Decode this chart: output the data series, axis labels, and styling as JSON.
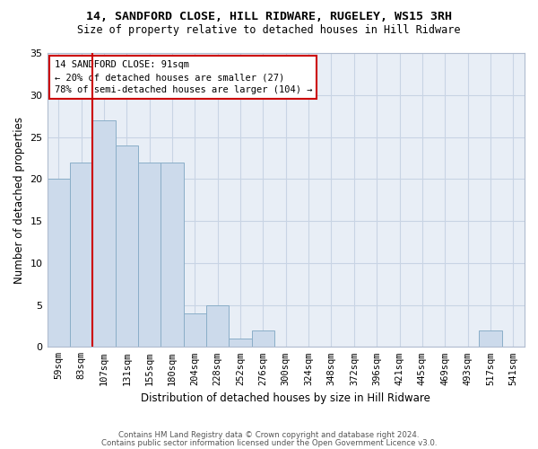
{
  "title_line1": "14, SANDFORD CLOSE, HILL RIDWARE, RUGELEY, WS15 3RH",
  "title_line2": "Size of property relative to detached houses in Hill Ridware",
  "xlabel": "Distribution of detached houses by size in Hill Ridware",
  "ylabel": "Number of detached properties",
  "bar_labels": [
    "59sqm",
    "83sqm",
    "107sqm",
    "131sqm",
    "155sqm",
    "180sqm",
    "204sqm",
    "228sqm",
    "252sqm",
    "276sqm",
    "300sqm",
    "324sqm",
    "348sqm",
    "372sqm",
    "396sqm",
    "421sqm",
    "445sqm",
    "469sqm",
    "493sqm",
    "517sqm",
    "541sqm"
  ],
  "bar_values": [
    20,
    22,
    27,
    24,
    22,
    22,
    4,
    5,
    1,
    2,
    0,
    0,
    0,
    0,
    0,
    0,
    0,
    0,
    0,
    2,
    0
  ],
  "bar_color": "#ccdaeb",
  "bar_edge_color": "#8aaec8",
  "vline_x_index": 1.5,
  "vline_color": "#cc0000",
  "annotation_text": "14 SANDFORD CLOSE: 91sqm\n← 20% of detached houses are smaller (27)\n78% of semi-detached houses are larger (104) →",
  "annotation_box_color": "#ffffff",
  "annotation_box_edge_color": "#cc0000",
  "ylim": [
    0,
    35
  ],
  "yticks": [
    0,
    5,
    10,
    15,
    20,
    25,
    30,
    35
  ],
  "grid_color": "#c8d4e4",
  "bg_color": "#e8eef6",
  "footer_line1": "Contains HM Land Registry data © Crown copyright and database right 2024.",
  "footer_line2": "Contains public sector information licensed under the Open Government Licence v3.0."
}
